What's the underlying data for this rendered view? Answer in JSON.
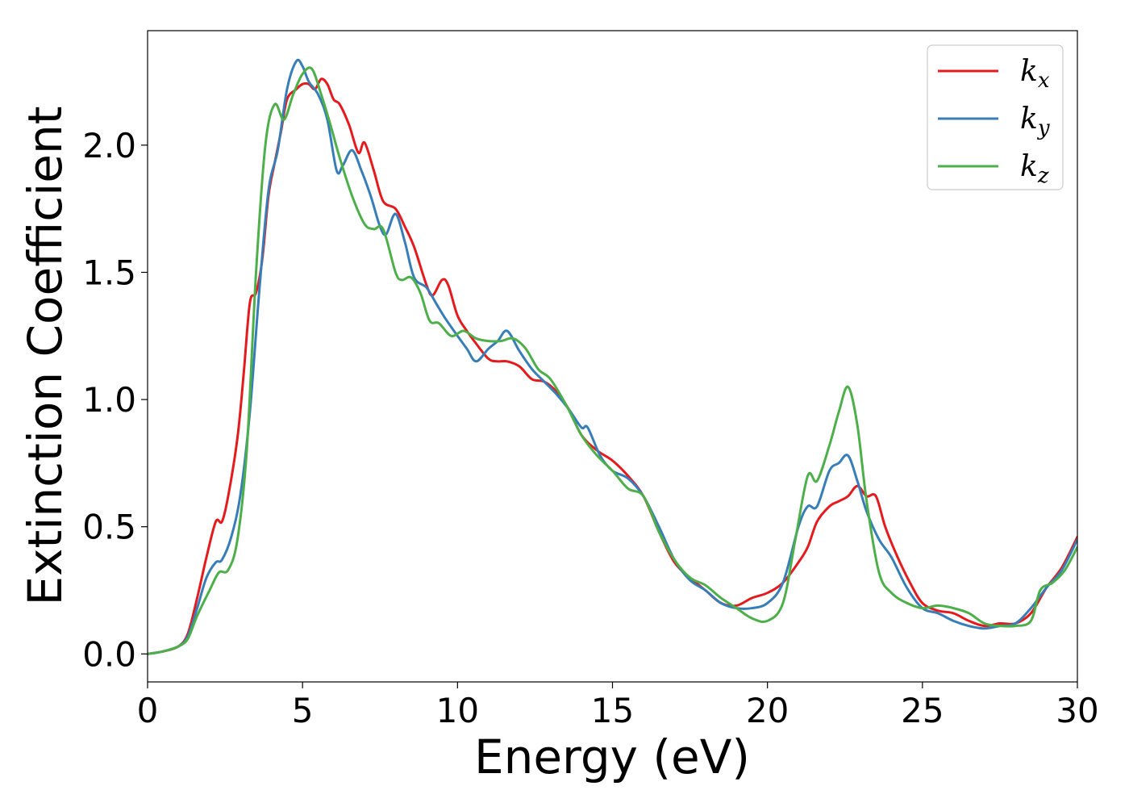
{
  "chart_data": {
    "type": "line",
    "xlabel": "Energy (eV)",
    "ylabel": "Extinction Coefficient",
    "xlim": [
      0,
      30
    ],
    "ylim": [
      -0.11,
      2.45
    ],
    "xticks": [
      0,
      5,
      10,
      15,
      20,
      25,
      30
    ],
    "xtick_labels": [
      "0",
      "5",
      "10",
      "15",
      "20",
      "25",
      "30"
    ],
    "yticks": [
      0.0,
      0.5,
      1.0,
      1.5,
      2.0
    ],
    "ytick_labels": [
      "0.0",
      "0.5",
      "1.0",
      "1.5",
      "2.0"
    ],
    "grid": false,
    "legend": {
      "position": "top-right",
      "entries": [
        {
          "base": "k",
          "sub": "x",
          "color": "#e41a1c"
        },
        {
          "base": "k",
          "sub": "y",
          "color": "#377eb8"
        },
        {
          "base": "k",
          "sub": "z",
          "color": "#4daf4a"
        }
      ]
    },
    "series": [
      {
        "name": "kx",
        "color": "#e41a1c",
        "points": [
          [
            0,
            0.0
          ],
          [
            0.5,
            0.01
          ],
          [
            1.0,
            0.03
          ],
          [
            1.3,
            0.08
          ],
          [
            1.6,
            0.22
          ],
          [
            1.9,
            0.38
          ],
          [
            2.2,
            0.52
          ],
          [
            2.4,
            0.52
          ],
          [
            2.6,
            0.62
          ],
          [
            2.9,
            0.85
          ],
          [
            3.1,
            1.1
          ],
          [
            3.3,
            1.38
          ],
          [
            3.5,
            1.42
          ],
          [
            3.7,
            1.55
          ],
          [
            3.9,
            1.8
          ],
          [
            4.1,
            1.93
          ],
          [
            4.3,
            2.05
          ],
          [
            4.5,
            2.18
          ],
          [
            4.8,
            2.22
          ],
          [
            5.0,
            2.24
          ],
          [
            5.2,
            2.24
          ],
          [
            5.4,
            2.22
          ],
          [
            5.6,
            2.26
          ],
          [
            5.8,
            2.24
          ],
          [
            6.0,
            2.18
          ],
          [
            6.2,
            2.16
          ],
          [
            6.5,
            2.08
          ],
          [
            6.8,
            1.97
          ],
          [
            7.0,
            2.01
          ],
          [
            7.3,
            1.9
          ],
          [
            7.6,
            1.78
          ],
          [
            8.0,
            1.75
          ],
          [
            8.3,
            1.68
          ],
          [
            8.6,
            1.6
          ],
          [
            9.0,
            1.45
          ],
          [
            9.2,
            1.41
          ],
          [
            9.5,
            1.47
          ],
          [
            9.7,
            1.45
          ],
          [
            10.0,
            1.33
          ],
          [
            10.3,
            1.27
          ],
          [
            10.6,
            1.22
          ],
          [
            11.0,
            1.16
          ],
          [
            11.3,
            1.15
          ],
          [
            11.6,
            1.15
          ],
          [
            12.0,
            1.13
          ],
          [
            12.4,
            1.08
          ],
          [
            12.8,
            1.07
          ],
          [
            13.2,
            1.03
          ],
          [
            13.6,
            0.96
          ],
          [
            14.0,
            0.86
          ],
          [
            14.5,
            0.8
          ],
          [
            15.0,
            0.76
          ],
          [
            15.5,
            0.7
          ],
          [
            16.0,
            0.62
          ],
          [
            16.5,
            0.48
          ],
          [
            17.0,
            0.36
          ],
          [
            17.5,
            0.3
          ],
          [
            18.0,
            0.25
          ],
          [
            18.5,
            0.2
          ],
          [
            19.0,
            0.19
          ],
          [
            19.5,
            0.22
          ],
          [
            20.0,
            0.24
          ],
          [
            20.5,
            0.28
          ],
          [
            21.0,
            0.36
          ],
          [
            21.3,
            0.42
          ],
          [
            21.6,
            0.52
          ],
          [
            22.0,
            0.58
          ],
          [
            22.3,
            0.6
          ],
          [
            22.6,
            0.62
          ],
          [
            22.9,
            0.66
          ],
          [
            23.2,
            0.62
          ],
          [
            23.5,
            0.62
          ],
          [
            23.8,
            0.5
          ],
          [
            24.2,
            0.38
          ],
          [
            24.6,
            0.28
          ],
          [
            25.0,
            0.2
          ],
          [
            25.5,
            0.17
          ],
          [
            26.0,
            0.16
          ],
          [
            26.5,
            0.13
          ],
          [
            27.0,
            0.11
          ],
          [
            27.5,
            0.12
          ],
          [
            28.0,
            0.12
          ],
          [
            28.5,
            0.16
          ],
          [
            29.0,
            0.26
          ],
          [
            29.5,
            0.34
          ],
          [
            30.0,
            0.46
          ]
        ]
      },
      {
        "name": "ky",
        "color": "#377eb8",
        "points": [
          [
            0,
            0.0
          ],
          [
            0.5,
            0.01
          ],
          [
            1.0,
            0.03
          ],
          [
            1.3,
            0.07
          ],
          [
            1.6,
            0.18
          ],
          [
            1.9,
            0.3
          ],
          [
            2.2,
            0.36
          ],
          [
            2.4,
            0.37
          ],
          [
            2.7,
            0.46
          ],
          [
            3.0,
            0.63
          ],
          [
            3.3,
            0.95
          ],
          [
            3.6,
            1.42
          ],
          [
            3.9,
            1.82
          ],
          [
            4.2,
            1.98
          ],
          [
            4.5,
            2.22
          ],
          [
            4.8,
            2.33
          ],
          [
            5.0,
            2.31
          ],
          [
            5.2,
            2.25
          ],
          [
            5.5,
            2.2
          ],
          [
            5.8,
            2.1
          ],
          [
            6.1,
            1.9
          ],
          [
            6.3,
            1.92
          ],
          [
            6.6,
            1.98
          ],
          [
            6.9,
            1.9
          ],
          [
            7.2,
            1.8
          ],
          [
            7.5,
            1.68
          ],
          [
            7.7,
            1.65
          ],
          [
            8.0,
            1.73
          ],
          [
            8.3,
            1.62
          ],
          [
            8.6,
            1.48
          ],
          [
            9.0,
            1.44
          ],
          [
            9.3,
            1.38
          ],
          [
            9.6,
            1.32
          ],
          [
            10.0,
            1.25
          ],
          [
            10.3,
            1.2
          ],
          [
            10.6,
            1.15
          ],
          [
            11.0,
            1.2
          ],
          [
            11.3,
            1.23
          ],
          [
            11.6,
            1.27
          ],
          [
            12.0,
            1.19
          ],
          [
            12.4,
            1.12
          ],
          [
            12.8,
            1.07
          ],
          [
            13.2,
            1.02
          ],
          [
            13.6,
            0.96
          ],
          [
            14.0,
            0.89
          ],
          [
            14.2,
            0.89
          ],
          [
            14.6,
            0.78
          ],
          [
            15.0,
            0.72
          ],
          [
            15.5,
            0.69
          ],
          [
            16.0,
            0.62
          ],
          [
            16.5,
            0.5
          ],
          [
            17.0,
            0.37
          ],
          [
            17.5,
            0.29
          ],
          [
            18.0,
            0.25
          ],
          [
            18.5,
            0.2
          ],
          [
            19.0,
            0.18
          ],
          [
            19.5,
            0.18
          ],
          [
            20.0,
            0.2
          ],
          [
            20.5,
            0.28
          ],
          [
            21.0,
            0.5
          ],
          [
            21.3,
            0.58
          ],
          [
            21.6,
            0.58
          ],
          [
            22.0,
            0.72
          ],
          [
            22.3,
            0.75
          ],
          [
            22.6,
            0.78
          ],
          [
            22.9,
            0.68
          ],
          [
            23.2,
            0.56
          ],
          [
            23.6,
            0.45
          ],
          [
            24.0,
            0.38
          ],
          [
            24.5,
            0.26
          ],
          [
            25.0,
            0.18
          ],
          [
            25.5,
            0.16
          ],
          [
            26.0,
            0.13
          ],
          [
            26.5,
            0.11
          ],
          [
            27.0,
            0.1
          ],
          [
            27.5,
            0.11
          ],
          [
            28.0,
            0.12
          ],
          [
            28.5,
            0.18
          ],
          [
            29.0,
            0.26
          ],
          [
            29.5,
            0.33
          ],
          [
            30.0,
            0.45
          ]
        ]
      },
      {
        "name": "kz",
        "color": "#4daf4a",
        "points": [
          [
            0,
            0.0
          ],
          [
            0.5,
            0.01
          ],
          [
            1.0,
            0.03
          ],
          [
            1.3,
            0.06
          ],
          [
            1.6,
            0.15
          ],
          [
            2.0,
            0.25
          ],
          [
            2.3,
            0.32
          ],
          [
            2.6,
            0.33
          ],
          [
            2.9,
            0.45
          ],
          [
            3.2,
            0.8
          ],
          [
            3.5,
            1.5
          ],
          [
            3.8,
            2.0
          ],
          [
            4.1,
            2.16
          ],
          [
            4.4,
            2.1
          ],
          [
            4.7,
            2.2
          ],
          [
            5.0,
            2.28
          ],
          [
            5.3,
            2.3
          ],
          [
            5.6,
            2.2
          ],
          [
            5.9,
            2.08
          ],
          [
            6.2,
            1.95
          ],
          [
            6.6,
            1.8
          ],
          [
            7.0,
            1.69
          ],
          [
            7.3,
            1.67
          ],
          [
            7.6,
            1.67
          ],
          [
            8.0,
            1.5
          ],
          [
            8.2,
            1.47
          ],
          [
            8.5,
            1.48
          ],
          [
            8.8,
            1.42
          ],
          [
            9.1,
            1.31
          ],
          [
            9.4,
            1.3
          ],
          [
            9.8,
            1.25
          ],
          [
            10.2,
            1.27
          ],
          [
            10.6,
            1.24
          ],
          [
            11.0,
            1.23
          ],
          [
            11.4,
            1.23
          ],
          [
            11.8,
            1.24
          ],
          [
            12.2,
            1.2
          ],
          [
            12.6,
            1.12
          ],
          [
            13.0,
            1.08
          ],
          [
            13.5,
            0.98
          ],
          [
            14.0,
            0.86
          ],
          [
            14.5,
            0.78
          ],
          [
            15.0,
            0.72
          ],
          [
            15.5,
            0.65
          ],
          [
            16.0,
            0.62
          ],
          [
            16.5,
            0.48
          ],
          [
            17.0,
            0.37
          ],
          [
            17.5,
            0.3
          ],
          [
            18.0,
            0.27
          ],
          [
            18.5,
            0.22
          ],
          [
            19.0,
            0.18
          ],
          [
            19.5,
            0.14
          ],
          [
            20.0,
            0.13
          ],
          [
            20.5,
            0.2
          ],
          [
            20.9,
            0.45
          ],
          [
            21.3,
            0.7
          ],
          [
            21.6,
            0.68
          ],
          [
            22.0,
            0.82
          ],
          [
            22.3,
            0.95
          ],
          [
            22.6,
            1.05
          ],
          [
            22.9,
            0.9
          ],
          [
            23.2,
            0.6
          ],
          [
            23.6,
            0.32
          ],
          [
            24.0,
            0.24
          ],
          [
            24.5,
            0.2
          ],
          [
            25.0,
            0.18
          ],
          [
            25.5,
            0.19
          ],
          [
            26.0,
            0.18
          ],
          [
            26.5,
            0.16
          ],
          [
            27.0,
            0.12
          ],
          [
            27.5,
            0.11
          ],
          [
            28.0,
            0.11
          ],
          [
            28.5,
            0.13
          ],
          [
            28.8,
            0.25
          ],
          [
            29.2,
            0.28
          ],
          [
            29.6,
            0.33
          ],
          [
            30.0,
            0.42
          ]
        ]
      }
    ]
  }
}
